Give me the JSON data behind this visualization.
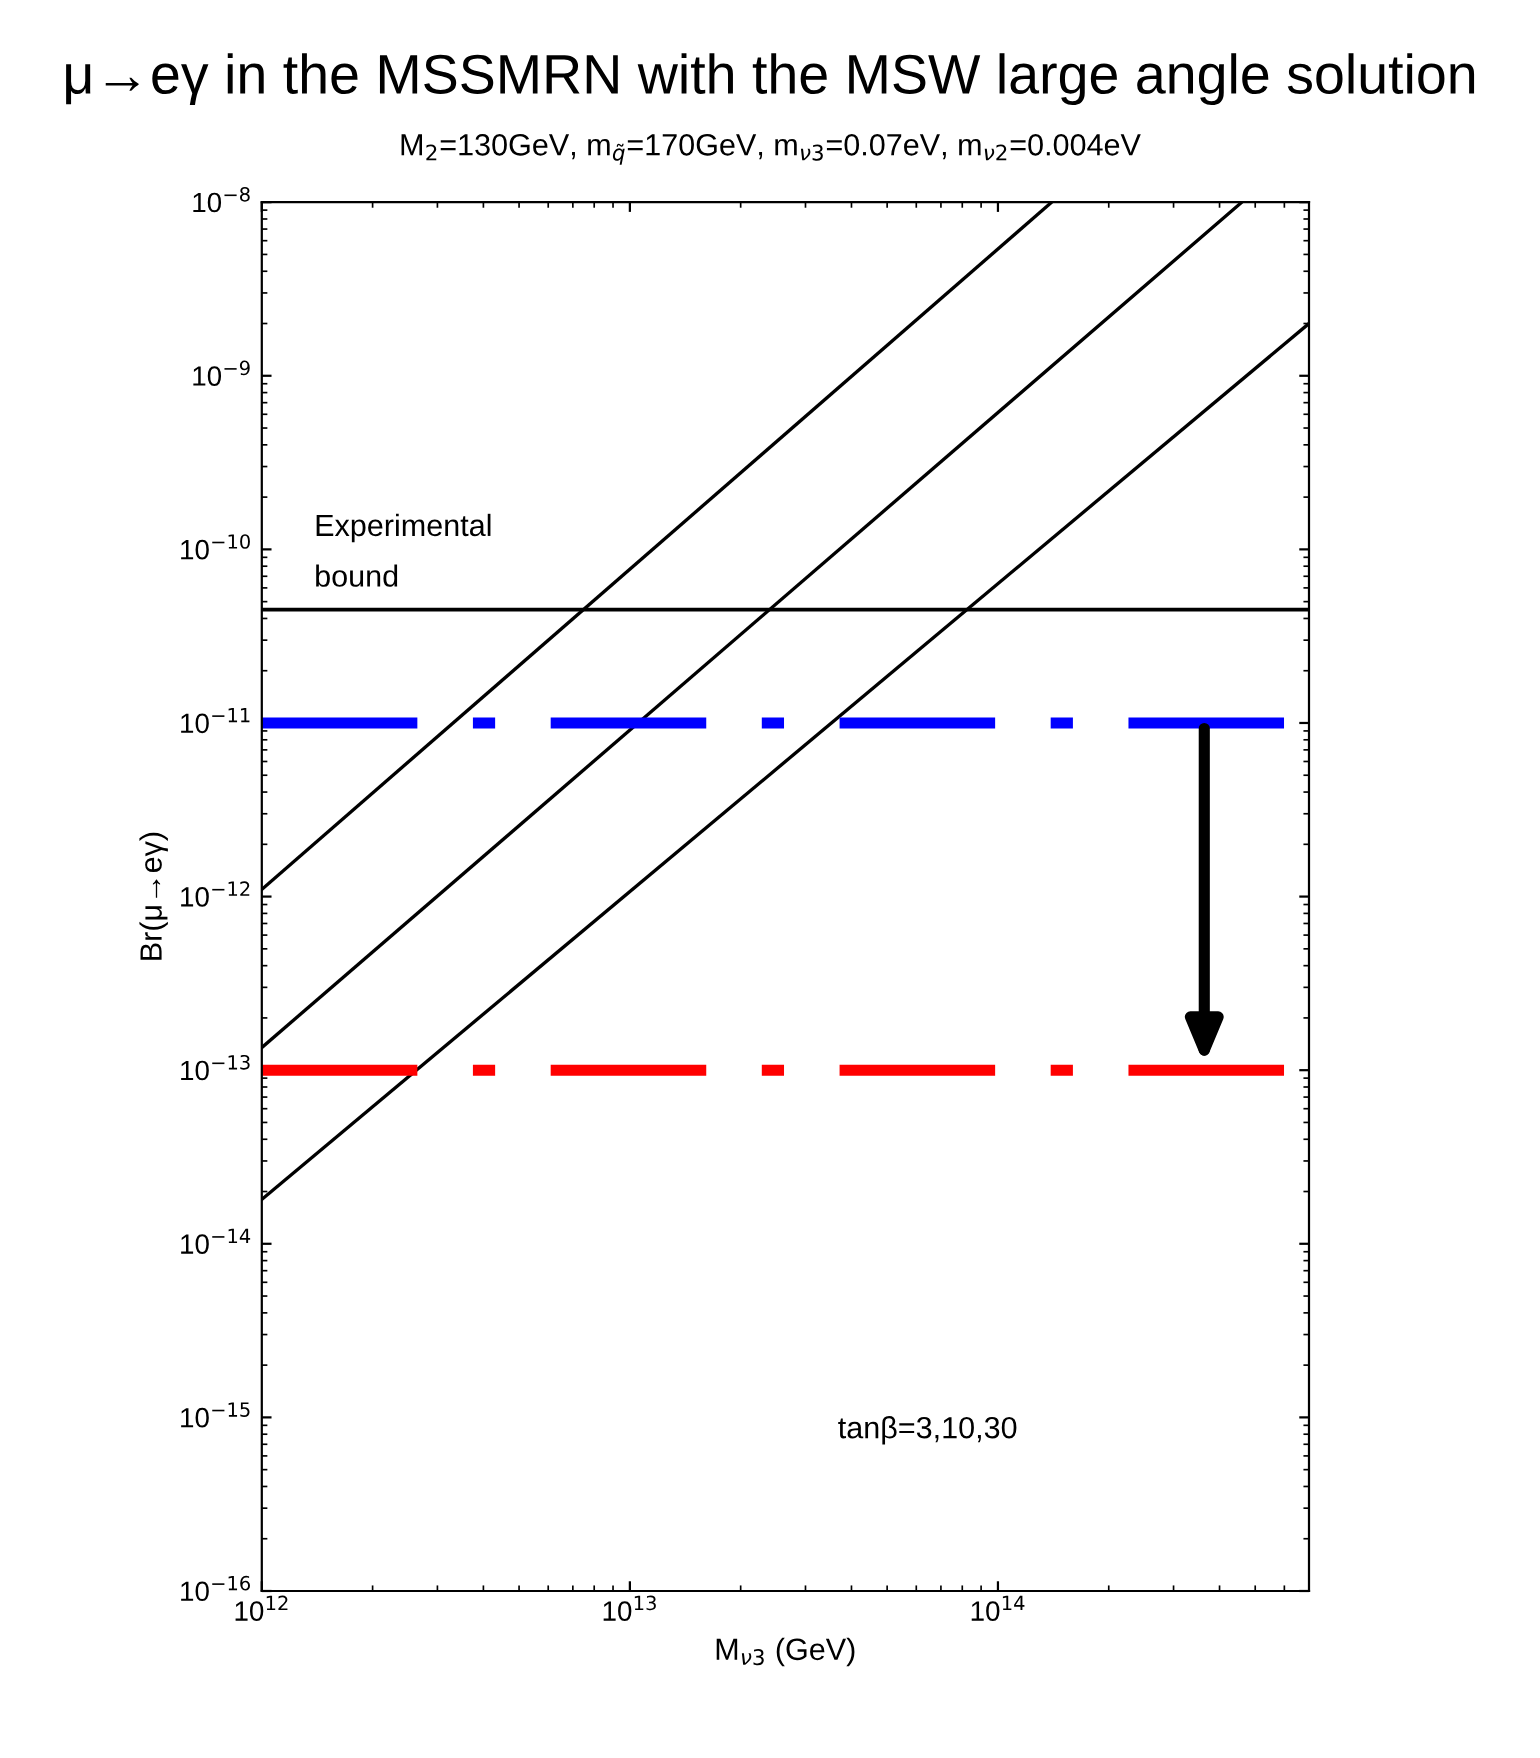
{
  "chart_data": {
    "type": "line",
    "title": "μ→eγ in the MSSMRN with the MSW large angle solution",
    "subtitle": "M$_{2}$=130GeV, m$_{q̃}$=170GeV, m$_{ν3}$=0.07eV, m$_{ν2}$=0.004eV",
    "xlabel": "M$_{ν3}$ (GeV)",
    "ylabel": "Br(μ→eγ)",
    "log": "xy",
    "series": [
      {
        "x": [
          1000000000000.0,
          140000000000000.0
        ],
        "values": [
          1.1e-12,
          1e-08
        ],
        "color": "#000000"
      },
      {
        "x": [
          1000000000000.0,
          460000000000000.0
        ],
        "values": [
          1.35e-13,
          1e-08
        ],
        "color": "#000000"
      },
      {
        "x": [
          1000000000000.0,
          700000000000000.0
        ],
        "values": [
          1.8e-14,
          2e-09
        ],
        "color": "#000000"
      }
    ],
    "xlim": [
      1000000000000.0,
      700000000000000.0
    ],
    "ylim": [
      1e-16,
      1e-08
    ],
    "xticks": [
      {
        "value": 1000000000000.0,
        "label": "10$^{12}$"
      },
      {
        "value": 10000000000000.0,
        "label": "10$^{13}$"
      },
      {
        "value": 100000000000000.0,
        "label": "10$^{14}$"
      }
    ],
    "yticks": [
      {
        "value": 1e-16,
        "label": "10$^{−16}$"
      },
      {
        "value": 1e-15,
        "label": "10$^{−15}$"
      },
      {
        "value": 1e-14,
        "label": "10$^{−14}$"
      },
      {
        "value": 1e-13,
        "label": "10$^{−13}$"
      },
      {
        "value": 1e-12,
        "label": "10$^{−12}$"
      },
      {
        "value": 1e-11,
        "label": "10$^{−11}$"
      },
      {
        "value": 1e-10,
        "label": "10$^{−10}$"
      },
      {
        "value": 1e-09,
        "label": "10$^{−9}$"
      },
      {
        "value": 1e-08,
        "label": "10$^{−8}$"
      }
    ],
    "ref_lines": [
      {
        "axis": "y",
        "value": 4.5e-11,
        "label": "Experimental\nbound",
        "color": "#000000",
        "line_style": "solid"
      },
      {
        "axis": "y",
        "value": 1e-11,
        "color": "#0000ff",
        "line_style": "dashdot"
      },
      {
        "axis": "y",
        "value": 1e-13,
        "color": "#ff0000",
        "line_style": "dashdot"
      }
    ],
    "annotations": [
      "tanβ=3,10,30"
    ],
    "grid": false,
    "legend": false,
    "line_style": "solid",
    "marker": "none"
  }
}
